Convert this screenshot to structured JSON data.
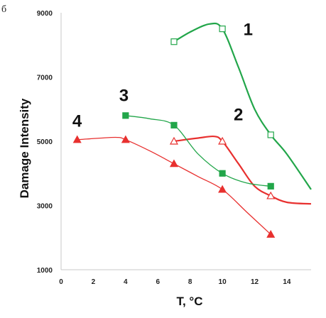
{
  "panel_label": "б",
  "colors": {
    "green": "#22a64a",
    "red": "#e8302f",
    "axis": "#c8c8c8"
  },
  "chart_data": {
    "type": "line",
    "xlabel": "T, °C",
    "ylabel": "Damage Intensity",
    "xlim": [
      0,
      15.5
    ],
    "ylim": [
      1000,
      9000
    ],
    "x_ticks": [
      0,
      2,
      4,
      6,
      8,
      10,
      12,
      14
    ],
    "y_ticks": [
      1000,
      3000,
      5000,
      7000,
      9000
    ],
    "grid": false,
    "series": [
      {
        "name": "1",
        "color": "green",
        "marker": "square-open",
        "thick": true,
        "points": [
          [
            7,
            8100
          ],
          [
            10,
            8500
          ],
          [
            13,
            5200
          ]
        ],
        "curve": [
          [
            7,
            8100
          ],
          [
            8,
            8400
          ],
          [
            9.2,
            8650
          ],
          [
            10,
            8500
          ],
          [
            11,
            7300
          ],
          [
            12,
            6000
          ],
          [
            13,
            5200
          ],
          [
            14,
            4600
          ],
          [
            15.5,
            3500
          ]
        ]
      },
      {
        "name": "2",
        "color": "red",
        "marker": "triangle-open",
        "thick": true,
        "points": [
          [
            7,
            5000
          ],
          [
            10,
            5000
          ],
          [
            13,
            3300
          ]
        ],
        "curve": [
          [
            7,
            5000
          ],
          [
            8.5,
            5100
          ],
          [
            9.5,
            5150
          ],
          [
            10,
            5000
          ],
          [
            11,
            4300
          ],
          [
            12,
            3600
          ],
          [
            13,
            3300
          ],
          [
            14,
            3100
          ],
          [
            15.5,
            3050
          ]
        ]
      },
      {
        "name": "3",
        "color": "green",
        "marker": "square-filled",
        "thick": false,
        "points": [
          [
            4,
            5800
          ],
          [
            7,
            5500
          ],
          [
            10,
            4000
          ],
          [
            13,
            3600
          ]
        ],
        "curve": [
          [
            4,
            5800
          ],
          [
            5.5,
            5700
          ],
          [
            7,
            5500
          ],
          [
            8.5,
            4600
          ],
          [
            10,
            4000
          ],
          [
            11.5,
            3700
          ],
          [
            13,
            3600
          ]
        ]
      },
      {
        "name": "4",
        "color": "red",
        "marker": "triangle-filled",
        "thick": false,
        "points": [
          [
            1,
            5050
          ],
          [
            4,
            5050
          ],
          [
            7,
            4300
          ],
          [
            10,
            3500
          ],
          [
            13,
            2100
          ]
        ],
        "curve": [
          [
            1,
            5050
          ],
          [
            2.5,
            5100
          ],
          [
            3.5,
            5120
          ],
          [
            4,
            5050
          ],
          [
            5.5,
            4700
          ],
          [
            7,
            4300
          ],
          [
            8.5,
            3900
          ],
          [
            10,
            3500
          ],
          [
            11.5,
            2800
          ],
          [
            13,
            2100
          ]
        ]
      }
    ],
    "labels": [
      {
        "text": "1",
        "at": [
          11.3,
          8300
        ]
      },
      {
        "text": "2",
        "at": [
          10.7,
          5650
        ]
      },
      {
        "text": "3",
        "at": [
          3.6,
          6250
        ]
      },
      {
        "text": "4",
        "at": [
          0.7,
          5450
        ]
      }
    ]
  }
}
